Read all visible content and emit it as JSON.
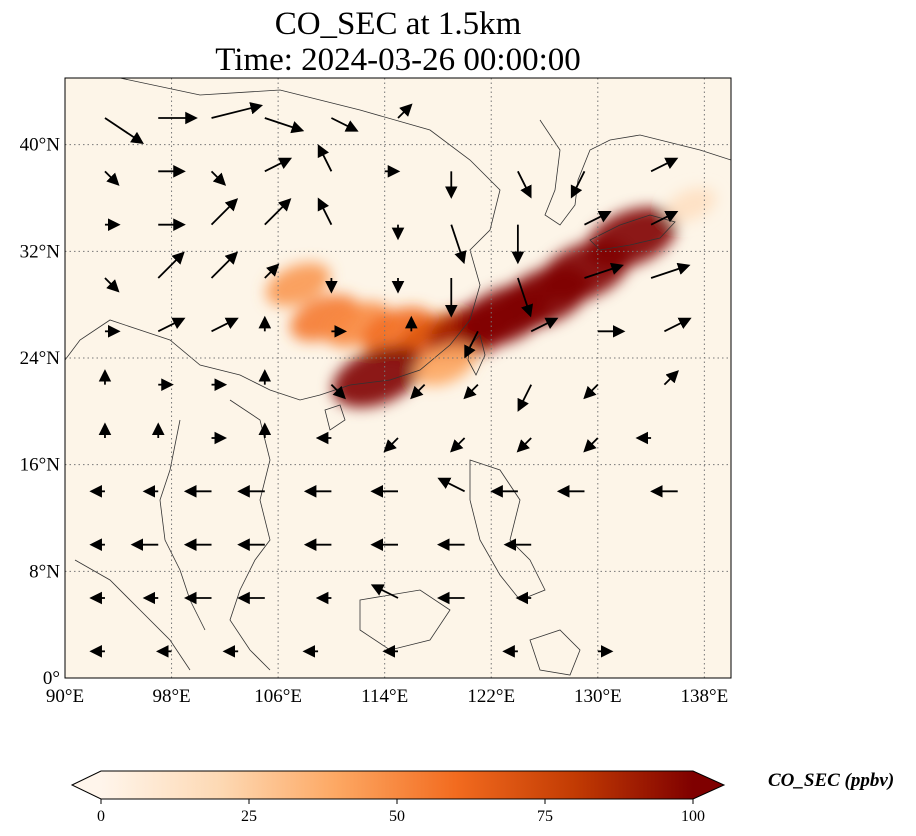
{
  "title_line1": "CO_SEC at 1.5km",
  "title_line2": "Time: 2024-03-26 00:00:00",
  "map": {
    "lon_range": [
      90,
      140
    ],
    "lat_range": [
      0,
      45
    ],
    "lon_ticks": [
      {
        "value": 90,
        "label": "90°E"
      },
      {
        "value": 98,
        "label": "98°E"
      },
      {
        "value": 106,
        "label": "106°E"
      },
      {
        "value": 114,
        "label": "114°E"
      },
      {
        "value": 122,
        "label": "122°E"
      },
      {
        "value": 130,
        "label": "130°E"
      },
      {
        "value": 138,
        "label": "138°E"
      }
    ],
    "lat_ticks": [
      {
        "value": 0,
        "label": "0°"
      },
      {
        "value": 8,
        "label": "8°N"
      },
      {
        "value": 16,
        "label": "16°N"
      },
      {
        "value": 24,
        "label": "24°N"
      },
      {
        "value": 32,
        "label": "32°N"
      },
      {
        "value": 40,
        "label": "40°N"
      }
    ],
    "gridlines": true,
    "field_color": "#fdf5e8",
    "plumes": [
      {
        "lon": 107.5,
        "lat": 29.5,
        "value": 45
      },
      {
        "lon": 109.5,
        "lat": 27.0,
        "value": 55
      },
      {
        "lon": 112.0,
        "lat": 26.5,
        "value": 50
      },
      {
        "lon": 115.0,
        "lat": 26.0,
        "value": 60
      },
      {
        "lon": 118.0,
        "lat": 25.5,
        "value": 70
      },
      {
        "lon": 120.5,
        "lat": 26.0,
        "value": 90
      },
      {
        "lon": 123.0,
        "lat": 27.2,
        "value": 100
      },
      {
        "lon": 126.0,
        "lat": 28.6,
        "value": 100
      },
      {
        "lon": 129.0,
        "lat": 30.5,
        "value": 100
      },
      {
        "lon": 132.5,
        "lat": 33.0,
        "value": 100
      },
      {
        "lon": 113.5,
        "lat": 22.6,
        "value": 100
      },
      {
        "lon": 118.5,
        "lat": 23.5,
        "value": 40
      },
      {
        "lon": 137.0,
        "lat": 35.5,
        "value": 15
      }
    ],
    "vectors": [
      {
        "lon": 93,
        "lat": 42,
        "u": 3,
        "v": -2
      },
      {
        "lon": 97,
        "lat": 42,
        "u": 3,
        "v": 0
      },
      {
        "lon": 101,
        "lat": 42,
        "u": 4,
        "v": 1
      },
      {
        "lon": 105,
        "lat": 42,
        "u": 3,
        "v": -1
      },
      {
        "lon": 110,
        "lat": 42,
        "u": 2,
        "v": -1
      },
      {
        "lon": 115,
        "lat": 42,
        "u": 1,
        "v": 1
      },
      {
        "lon": 93,
        "lat": 38,
        "u": 1,
        "v": -1
      },
      {
        "lon": 97,
        "lat": 38,
        "u": 2,
        "v": 0
      },
      {
        "lon": 101,
        "lat": 38,
        "u": 1,
        "v": -1
      },
      {
        "lon": 105,
        "lat": 38,
        "u": 2,
        "v": 1
      },
      {
        "lon": 110,
        "lat": 38,
        "u": -1,
        "v": 2
      },
      {
        "lon": 114,
        "lat": 38,
        "u": 1,
        "v": 0
      },
      {
        "lon": 119,
        "lat": 38,
        "u": 0,
        "v": -2
      },
      {
        "lon": 124,
        "lat": 38,
        "u": 1,
        "v": -2
      },
      {
        "lon": 129,
        "lat": 38,
        "u": -1,
        "v": -2
      },
      {
        "lon": 134,
        "lat": 38,
        "u": 2,
        "v": 1
      },
      {
        "lon": 93,
        "lat": 34,
        "u": 1,
        "v": 0
      },
      {
        "lon": 97,
        "lat": 34,
        "u": 2,
        "v": 0
      },
      {
        "lon": 101,
        "lat": 34,
        "u": 2,
        "v": 2
      },
      {
        "lon": 105,
        "lat": 34,
        "u": 2,
        "v": 2
      },
      {
        "lon": 110,
        "lat": 34,
        "u": -1,
        "v": 2
      },
      {
        "lon": 115,
        "lat": 34,
        "u": 0,
        "v": -1
      },
      {
        "lon": 119,
        "lat": 34,
        "u": 1,
        "v": -3
      },
      {
        "lon": 124,
        "lat": 34,
        "u": 0,
        "v": -3
      },
      {
        "lon": 129,
        "lat": 34,
        "u": 2,
        "v": 1
      },
      {
        "lon": 134,
        "lat": 34,
        "u": 2,
        "v": 1
      },
      {
        "lon": 93,
        "lat": 30,
        "u": 1,
        "v": -1
      },
      {
        "lon": 97,
        "lat": 30,
        "u": 2,
        "v": 2
      },
      {
        "lon": 101,
        "lat": 30,
        "u": 2,
        "v": 2
      },
      {
        "lon": 105,
        "lat": 30,
        "u": 1,
        "v": 1
      },
      {
        "lon": 110,
        "lat": 30,
        "u": 0,
        "v": -1
      },
      {
        "lon": 115,
        "lat": 30,
        "u": 0,
        "v": -1
      },
      {
        "lon": 119,
        "lat": 30,
        "u": 0,
        "v": -3
      },
      {
        "lon": 124,
        "lat": 30,
        "u": 1,
        "v": -3
      },
      {
        "lon": 129,
        "lat": 30,
        "u": 3,
        "v": 1
      },
      {
        "lon": 134,
        "lat": 30,
        "u": 3,
        "v": 1
      },
      {
        "lon": 93,
        "lat": 26,
        "u": 1,
        "v": 0
      },
      {
        "lon": 97,
        "lat": 26,
        "u": 2,
        "v": 1
      },
      {
        "lon": 101,
        "lat": 26,
        "u": 2,
        "v": 1
      },
      {
        "lon": 105,
        "lat": 26,
        "u": 0,
        "v": 1
      },
      {
        "lon": 110,
        "lat": 26,
        "u": 1,
        "v": 0
      },
      {
        "lon": 116,
        "lat": 26,
        "u": 0,
        "v": 1
      },
      {
        "lon": 121,
        "lat": 26,
        "u": -1,
        "v": -2
      },
      {
        "lon": 125,
        "lat": 26,
        "u": 2,
        "v": 1
      },
      {
        "lon": 130,
        "lat": 26,
        "u": 2,
        "v": 0
      },
      {
        "lon": 135,
        "lat": 26,
        "u": 2,
        "v": 1
      },
      {
        "lon": 93,
        "lat": 22,
        "u": 0,
        "v": 1
      },
      {
        "lon": 97,
        "lat": 22,
        "u": 1,
        "v": 0
      },
      {
        "lon": 101,
        "lat": 22,
        "u": 1,
        "v": 0
      },
      {
        "lon": 105,
        "lat": 22,
        "u": 0,
        "v": 1
      },
      {
        "lon": 110,
        "lat": 22,
        "u": 1,
        "v": -1
      },
      {
        "lon": 117,
        "lat": 22,
        "u": -1,
        "v": -1
      },
      {
        "lon": 121,
        "lat": 22,
        "u": -1,
        "v": -1
      },
      {
        "lon": 125,
        "lat": 22,
        "u": -1,
        "v": -2
      },
      {
        "lon": 130,
        "lat": 22,
        "u": -1,
        "v": -1
      },
      {
        "lon": 135,
        "lat": 22,
        "u": 1,
        "v": 1
      },
      {
        "lon": 93,
        "lat": 18,
        "u": 0,
        "v": 1
      },
      {
        "lon": 97,
        "lat": 18,
        "u": 0,
        "v": 1
      },
      {
        "lon": 101,
        "lat": 18,
        "u": 1,
        "v": 0
      },
      {
        "lon": 105,
        "lat": 18,
        "u": 0,
        "v": 1
      },
      {
        "lon": 110,
        "lat": 18,
        "u": -1,
        "v": 0
      },
      {
        "lon": 115,
        "lat": 18,
        "u": -1,
        "v": -1
      },
      {
        "lon": 120,
        "lat": 18,
        "u": -1,
        "v": -1
      },
      {
        "lon": 125,
        "lat": 18,
        "u": -1,
        "v": -1
      },
      {
        "lon": 130,
        "lat": 18,
        "u": -1,
        "v": -1
      },
      {
        "lon": 134,
        "lat": 18,
        "u": -1,
        "v": 0
      },
      {
        "lon": 93,
        "lat": 14,
        "u": -1,
        "v": 0
      },
      {
        "lon": 97,
        "lat": 14,
        "u": -1,
        "v": 0
      },
      {
        "lon": 101,
        "lat": 14,
        "u": -2,
        "v": 0
      },
      {
        "lon": 105,
        "lat": 14,
        "u": -2,
        "v": 0
      },
      {
        "lon": 110,
        "lat": 14,
        "u": -2,
        "v": 0
      },
      {
        "lon": 115,
        "lat": 14,
        "u": -2,
        "v": 0
      },
      {
        "lon": 120,
        "lat": 14,
        "u": -2,
        "v": 1
      },
      {
        "lon": 124,
        "lat": 14,
        "u": -2,
        "v": 0
      },
      {
        "lon": 129,
        "lat": 14,
        "u": -2,
        "v": 0
      },
      {
        "lon": 136,
        "lat": 14,
        "u": -2,
        "v": 0
      },
      {
        "lon": 93,
        "lat": 10,
        "u": -1,
        "v": 0
      },
      {
        "lon": 97,
        "lat": 10,
        "u": -2,
        "v": 0
      },
      {
        "lon": 101,
        "lat": 10,
        "u": -2,
        "v": 0
      },
      {
        "lon": 105,
        "lat": 10,
        "u": -2,
        "v": 0
      },
      {
        "lon": 110,
        "lat": 10,
        "u": -2,
        "v": 0
      },
      {
        "lon": 115,
        "lat": 10,
        "u": -2,
        "v": 0
      },
      {
        "lon": 120,
        "lat": 10,
        "u": -2,
        "v": 0
      },
      {
        "lon": 125,
        "lat": 10,
        "u": -2,
        "v": 0
      },
      {
        "lon": 93,
        "lat": 6,
        "u": -1,
        "v": 0
      },
      {
        "lon": 97,
        "lat": 6,
        "u": -1,
        "v": 0
      },
      {
        "lon": 101,
        "lat": 6,
        "u": -2,
        "v": 0
      },
      {
        "lon": 105,
        "lat": 6,
        "u": -2,
        "v": 0
      },
      {
        "lon": 110,
        "lat": 6,
        "u": -1,
        "v": 0
      },
      {
        "lon": 115,
        "lat": 6,
        "u": -2,
        "v": 1
      },
      {
        "lon": 120,
        "lat": 6,
        "u": -2,
        "v": 0
      },
      {
        "lon": 125,
        "lat": 6,
        "u": -1,
        "v": 0
      },
      {
        "lon": 93,
        "lat": 2,
        "u": -1,
        "v": 0
      },
      {
        "lon": 98,
        "lat": 2,
        "u": -1,
        "v": 0
      },
      {
        "lon": 103,
        "lat": 2,
        "u": -1,
        "v": 0
      },
      {
        "lon": 109,
        "lat": 2,
        "u": -1,
        "v": 0
      },
      {
        "lon": 115,
        "lat": 2,
        "u": -1,
        "v": 0
      },
      {
        "lon": 124,
        "lat": 2,
        "u": -1,
        "v": 0
      },
      {
        "lon": 130,
        "lat": 2,
        "u": 1,
        "v": 0
      }
    ]
  },
  "colorbar": {
    "label": "CO_SEC (ppbv)",
    "ticks": [
      {
        "value": 0,
        "label": "0"
      },
      {
        "value": 25,
        "label": "25"
      },
      {
        "value": 50,
        "label": "50"
      },
      {
        "value": 75,
        "label": "75"
      },
      {
        "value": 100,
        "label": "100"
      }
    ],
    "range": [
      0,
      100
    ],
    "colormap": [
      "#fff5eb",
      "#fdd9b4",
      "#fda762",
      "#f26b1f",
      "#c23b03",
      "#7f0000"
    ]
  }
}
